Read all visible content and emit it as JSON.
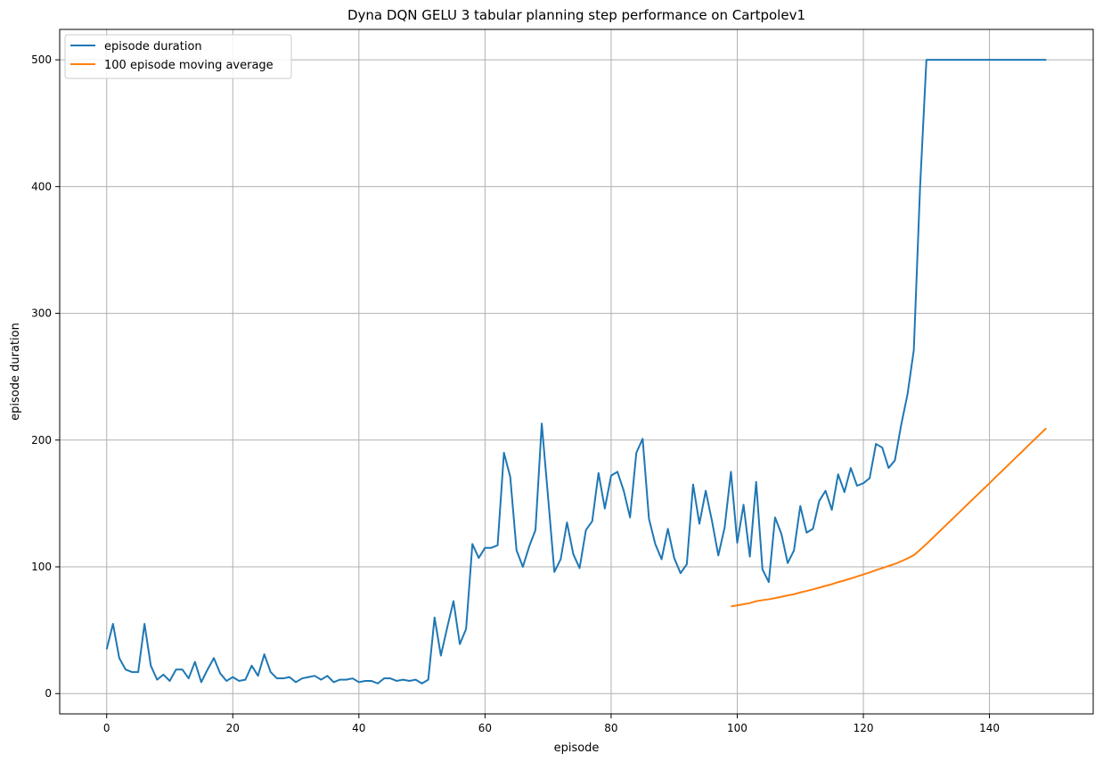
{
  "chart_data": {
    "type": "line",
    "title": "Dyna DQN GELU 3 tabular planning step performance on Cartpolev1",
    "xlabel": "episode",
    "ylabel": "episode duration",
    "xlim": [
      -7.45,
      156.45
    ],
    "ylim": [
      -16.0,
      524.0
    ],
    "xticks": [
      0,
      20,
      40,
      60,
      80,
      100,
      120,
      140
    ],
    "yticks": [
      0,
      100,
      200,
      300,
      400,
      500
    ],
    "grid": true,
    "legend_position": "upper-left",
    "series": [
      {
        "name": "episode duration",
        "color": "#1f77b4",
        "x": [
          0,
          1,
          2,
          3,
          4,
          5,
          6,
          7,
          8,
          9,
          10,
          11,
          12,
          13,
          14,
          15,
          16,
          17,
          18,
          19,
          20,
          21,
          22,
          23,
          24,
          25,
          26,
          27,
          28,
          29,
          30,
          31,
          32,
          33,
          34,
          35,
          36,
          37,
          38,
          39,
          40,
          41,
          42,
          43,
          44,
          45,
          46,
          47,
          48,
          49,
          50,
          51,
          52,
          53,
          54,
          55,
          56,
          57,
          58,
          59,
          60,
          61,
          62,
          63,
          64,
          65,
          66,
          67,
          68,
          69,
          70,
          71,
          72,
          73,
          74,
          75,
          76,
          77,
          78,
          79,
          80,
          81,
          82,
          83,
          84,
          85,
          86,
          87,
          88,
          89,
          90,
          91,
          92,
          93,
          94,
          95,
          96,
          97,
          98,
          99,
          100,
          101,
          102,
          103,
          104,
          105,
          106,
          107,
          108,
          109,
          110,
          111,
          112,
          113,
          114,
          115,
          116,
          117,
          118,
          119,
          120,
          121,
          122,
          123,
          124,
          125,
          126,
          127,
          128,
          129,
          130,
          131,
          132,
          133,
          134,
          135,
          136,
          137,
          138,
          139,
          140,
          141,
          142,
          143,
          144,
          145,
          146,
          147,
          148,
          149
        ],
        "values": [
          35,
          55,
          28,
          19,
          17,
          17,
          55,
          22,
          11,
          15,
          10,
          19,
          19,
          12,
          25,
          9,
          19,
          28,
          16,
          10,
          13,
          10,
          11,
          22,
          14,
          31,
          17,
          12,
          12,
          13,
          9,
          12,
          13,
          14,
          11,
          14,
          9,
          11,
          11,
          12,
          9,
          10,
          10,
          8,
          12,
          12,
          10,
          11,
          10,
          11,
          8,
          11,
          60,
          30,
          52,
          73,
          39,
          51,
          118,
          107,
          115,
          115,
          117,
          190,
          171,
          113,
          100,
          116,
          129,
          213,
          155,
          96,
          106,
          135,
          110,
          99,
          129,
          136,
          174,
          146,
          172,
          175,
          160,
          139,
          190,
          201,
          138,
          118,
          106,
          130,
          107,
          95,
          102,
          165,
          134,
          160,
          136,
          109,
          131,
          175,
          119,
          149,
          108,
          167,
          98,
          88,
          139,
          126,
          103,
          113,
          148,
          127,
          130,
          152,
          160,
          145,
          173,
          159,
          178,
          164,
          166,
          170,
          197,
          194,
          178,
          184,
          212,
          236,
          271,
          400,
          500,
          500,
          500,
          500,
          500,
          500,
          500,
          500,
          500,
          500,
          500,
          500,
          500,
          500,
          500,
          500,
          500,
          500,
          500,
          500
        ]
      },
      {
        "name": "100 episode moving average",
        "color": "#ff7f0e",
        "x": [
          99,
          100,
          101,
          102,
          103,
          104,
          105,
          106,
          107,
          108,
          109,
          110,
          111,
          112,
          113,
          114,
          115,
          116,
          117,
          118,
          119,
          120,
          121,
          122,
          123,
          124,
          125,
          126,
          127,
          128,
          129,
          130,
          131,
          132,
          133,
          134,
          135,
          136,
          137,
          138,
          139,
          140,
          141,
          142,
          143,
          144,
          145,
          146,
          147,
          148,
          149
        ],
        "values": [
          68.8,
          69.6,
          70.5,
          71.4,
          72.9,
          73.7,
          74.4,
          75.3,
          76.4,
          77.4,
          78.4,
          79.8,
          81.0,
          82.2,
          83.6,
          85.0,
          86.3,
          87.9,
          89.3,
          90.8,
          92.4,
          94.0,
          95.6,
          97.4,
          99.0,
          100.7,
          102.3,
          104.4,
          106.6,
          109.2,
          113.5,
          118.0,
          122.8,
          127.6,
          132.4,
          137.2,
          142.0,
          146.8,
          151.6,
          156.4,
          161.2,
          166.0,
          170.9,
          175.6,
          180.5,
          185.3,
          190.1,
          195.0,
          199.8,
          204.6,
          209.4
        ]
      }
    ]
  }
}
